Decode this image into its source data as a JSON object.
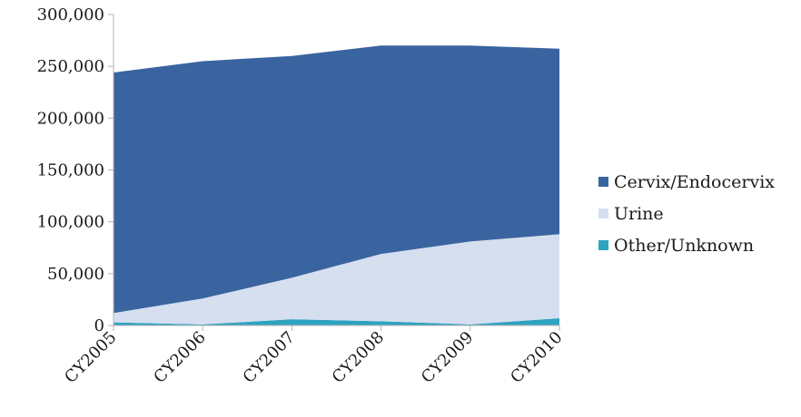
{
  "chart_data": {
    "type": "area",
    "stacked": true,
    "categories": [
      "CY2005",
      "CY2006",
      "CY2007",
      "CY2008",
      "CY2009",
      "CY2010"
    ],
    "series": [
      {
        "name": "Other/Unknown",
        "values": [
          3000,
          1000,
          6000,
          4000,
          1000,
          7000
        ],
        "color": "#2ea3c0"
      },
      {
        "name": "Urine",
        "values": [
          9000,
          25000,
          40000,
          65000,
          80000,
          81000
        ],
        "color": "#d6dff0"
      },
      {
        "name": "Cervix/Endocervix",
        "values": [
          232000,
          229000,
          214000,
          201000,
          189000,
          179000
        ],
        "color": "#3a64a0"
      }
    ],
    "ylim": [
      0,
      300000
    ],
    "yticks": [
      0,
      50000,
      100000,
      150000,
      200000,
      250000,
      300000
    ],
    "ytick_labels": [
      "0",
      "50,000",
      "100,000",
      "150,000",
      "200,000",
      "250,000",
      "300,000"
    ],
    "legend_position": "right",
    "legend_order": [
      "Cervix/Endocervix",
      "Urine",
      "Other/Unknown"
    ],
    "grid": false,
    "title": "",
    "xlabel": "",
    "ylabel": ""
  }
}
